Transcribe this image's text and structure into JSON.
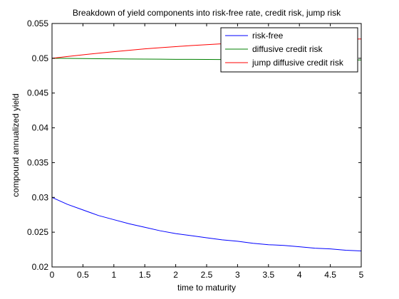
{
  "chart_data": {
    "type": "line",
    "title": "Breakdown of yield components into risk-free rate, credit risk, jump risk",
    "xlabel": "time to maturity",
    "ylabel": "compound annualized yield",
    "xlim": [
      0,
      5
    ],
    "ylim": [
      0.02,
      0.055
    ],
    "xticks": [
      0,
      0.5,
      1,
      1.5,
      2,
      2.5,
      3,
      3.5,
      4,
      4.5,
      5
    ],
    "xtick_labels": [
      "0",
      "0.5",
      "1",
      "1.5",
      "2",
      "2.5",
      "3",
      "3.5",
      "4",
      "4.5",
      "5"
    ],
    "yticks": [
      0.02,
      0.025,
      0.03,
      0.035,
      0.04,
      0.045,
      0.05,
      0.055
    ],
    "ytick_labels": [
      "0.02",
      "0.025",
      "0.03",
      "0.035",
      "0.04",
      "0.045",
      "0.05",
      "0.055"
    ],
    "grid": false,
    "legend_position": "top-right",
    "x": [
      0,
      0.25,
      0.5,
      0.75,
      1,
      1.25,
      1.5,
      1.75,
      2,
      2.25,
      2.5,
      2.75,
      3,
      3.25,
      3.5,
      3.75,
      4,
      4.25,
      4.5,
      4.75,
      5
    ],
    "series": [
      {
        "name": "risk-free",
        "color": "#0000ff",
        "values": [
          0.03,
          0.029,
          0.0282,
          0.0274,
          0.0268,
          0.0262,
          0.0257,
          0.0252,
          0.0248,
          0.0245,
          0.0242,
          0.0239,
          0.0237,
          0.0234,
          0.0232,
          0.0231,
          0.0229,
          0.0227,
          0.0226,
          0.0224,
          0.0223
        ]
      },
      {
        "name": "diffusive credit risk",
        "color": "#008000",
        "values": [
          0.05,
          0.04998,
          0.04996,
          0.04994,
          0.04992,
          0.0499,
          0.04988,
          0.04987,
          0.04985,
          0.04984,
          0.04983,
          0.04982,
          0.04981,
          0.0498,
          0.04979,
          0.04979,
          0.04978,
          0.04978,
          0.04977,
          0.04977,
          0.04976
        ]
      },
      {
        "name": "jump diffusive credit risk",
        "color": "#ff0000",
        "values": [
          0.05,
          0.05025,
          0.0505,
          0.05073,
          0.05095,
          0.05115,
          0.05135,
          0.05152,
          0.05168,
          0.05183,
          0.05196,
          0.05208,
          0.05219,
          0.05229,
          0.05238,
          0.05246,
          0.05254,
          0.05261,
          0.05267,
          0.05273,
          0.05278
        ]
      }
    ]
  }
}
